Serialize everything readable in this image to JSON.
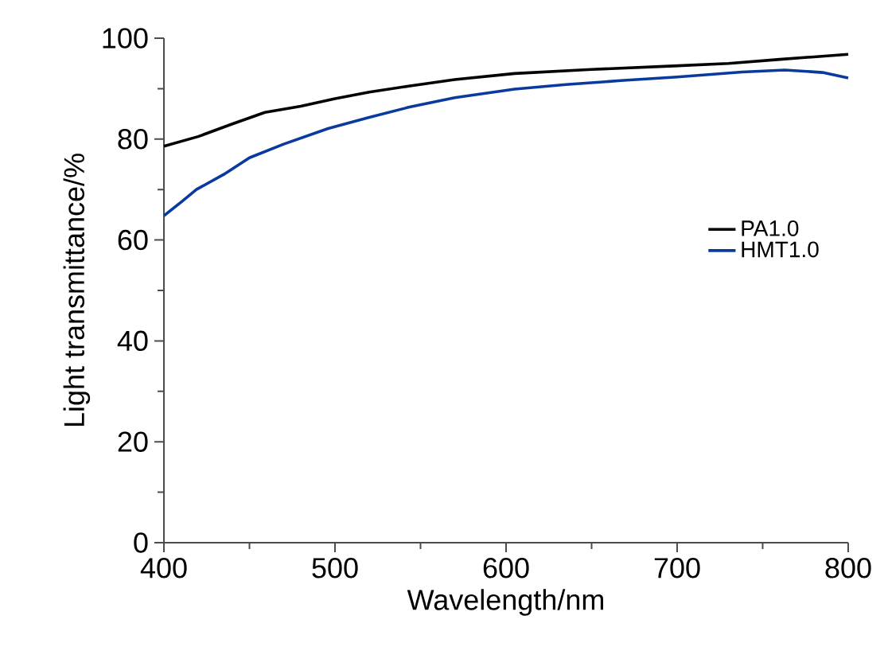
{
  "chart_data": {
    "type": "line",
    "xlabel": "Wavelength/nm",
    "ylabel": "Light transmittance/%",
    "xlim": [
      400,
      800
    ],
    "ylim": [
      0,
      100
    ],
    "xticks": [
      400,
      500,
      600,
      700,
      800
    ],
    "yticks": [
      0,
      20,
      40,
      60,
      80,
      100
    ],
    "legend": "right",
    "grid": false,
    "series": [
      {
        "name": "PA1.0",
        "color": "#000000",
        "x": [
          400,
          420,
          440,
          459,
          480,
          500,
          520,
          543,
          570,
          605,
          650,
          698,
          730,
          760,
          780,
          800
        ],
        "values": [
          78.6,
          80.5,
          83,
          85.3,
          86.5,
          88,
          89.3,
          90.5,
          91.8,
          93,
          93.8,
          94.5,
          95,
          95.8,
          96.3,
          96.8
        ]
      },
      {
        "name": "HMT1.0",
        "color": "#0a3a9e",
        "x": [
          400,
          410,
          419,
          435,
          450,
          470,
          496,
          520,
          543,
          570,
          605,
          635,
          667,
          700,
          738,
          763,
          785,
          800
        ],
        "values": [
          64.8,
          67.5,
          70,
          73,
          76.3,
          79,
          82.1,
          84.3,
          86.3,
          88.2,
          89.9,
          90.8,
          91.6,
          92.3,
          93.3,
          93.7,
          93.2,
          92.1
        ]
      }
    ]
  }
}
